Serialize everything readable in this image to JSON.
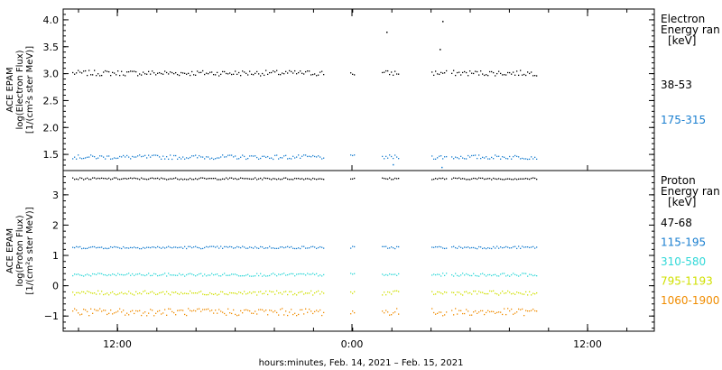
{
  "chart_data": [
    {
      "type": "scatter",
      "ylabel_lines": [
        "ACE EPAM",
        "log(Electron Flux)",
        "[1/(cm²s ster MeV)]"
      ],
      "legend_header": [
        "Electron",
        "Energy ran",
        "[keV]"
      ],
      "ylim": [
        1.2,
        4.2
      ],
      "yticks": [
        1.5,
        2.0,
        2.5,
        3.0,
        3.5,
        4.0
      ],
      "ytick_labels": [
        "1.5",
        "2.0",
        "2.5",
        "3.0",
        "3.5",
        "4.0"
      ],
      "series": [
        {
          "name": "38-53",
          "color": "#000000",
          "base": 3.02,
          "jitter": 0.05
        },
        {
          "name": "175-315",
          "color": "#1a7fd0",
          "base": 1.46,
          "jitter": 0.04
        }
      ]
    },
    {
      "type": "scatter",
      "ylabel_lines": [
        "ACE EPAM",
        "log(Proton Flux)",
        "[1/(cm²s ster MeV)]"
      ],
      "legend_header": [
        "Proton",
        "Energy ran",
        "[keV]"
      ],
      "ylim": [
        -1.5,
        3.8
      ],
      "yticks": [
        -1,
        0,
        1,
        2,
        3
      ],
      "ytick_labels": [
        "−1",
        "0",
        "1",
        "2",
        "3"
      ],
      "series": [
        {
          "name": "47-68",
          "color": "#000000",
          "base": 3.55,
          "jitter": 0.03
        },
        {
          "name": "115-195",
          "color": "#1a7fd0",
          "base": 1.28,
          "jitter": 0.04
        },
        {
          "name": "310-580",
          "color": "#30d8d8",
          "base": 0.38,
          "jitter": 0.05
        },
        {
          "name": "795-1193",
          "color": "#d0e000",
          "base": -0.22,
          "jitter": 0.07
        },
        {
          "name": "1060-1900",
          "color": "#f08c00",
          "base": -0.85,
          "jitter": 0.12
        }
      ]
    }
  ],
  "x_axis": {
    "tick_labels": [
      "12:00",
      "0:00",
      "12:00"
    ],
    "xlabel": "hours:minutes, Feb. 14, 2021 – Feb. 15, 2021"
  }
}
